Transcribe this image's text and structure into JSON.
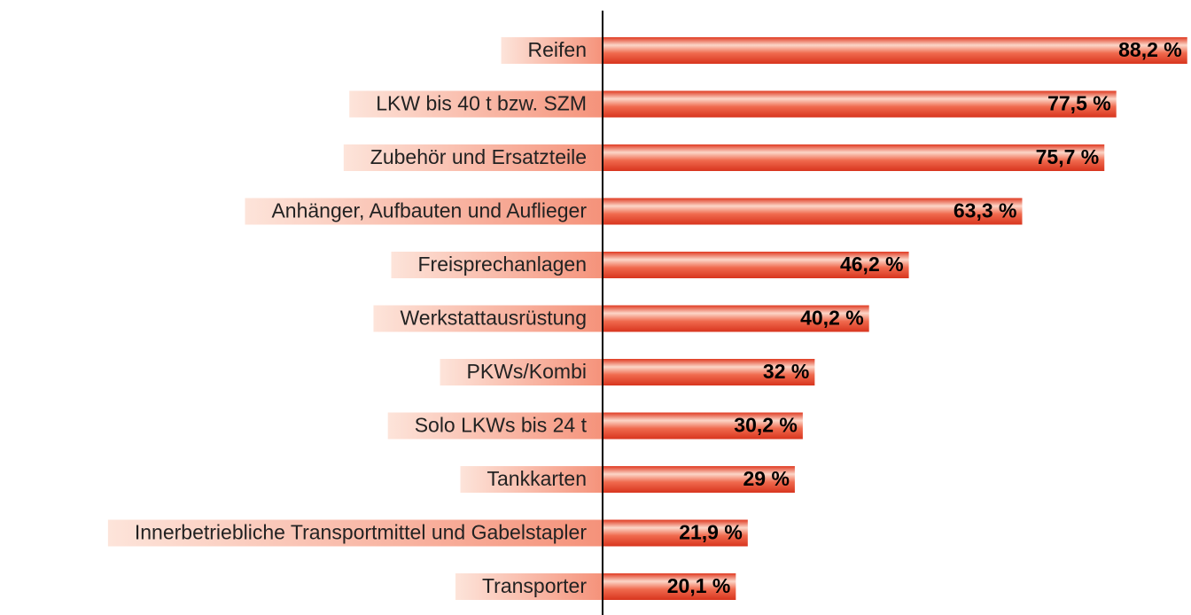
{
  "chart_data": {
    "type": "bar",
    "orientation": "horizontal",
    "categories": [
      "Reifen",
      "LKW bis 40 t bzw. SZM",
      "Zubehör und Ersatzteile",
      "Anhänger, Aufbauten und Auflieger",
      "Freisprechanlagen",
      "Werkstattausrüstung",
      "PKWs/Kombi",
      "Solo LKWs bis 24 t",
      "Tankkarten",
      "Innerbetriebliche Transportmittel und Gabelstapler",
      "Transporter"
    ],
    "values": [
      88.2,
      77.5,
      75.7,
      63.3,
      46.2,
      40.2,
      32,
      30.2,
      29,
      21.9,
      20.1
    ],
    "value_labels": [
      "88,2 %",
      "77,5 %",
      "75,7 %",
      "63,3 %",
      "46,2 %",
      "40,2 %",
      "32 %",
      "30,2 %",
      "29 %",
      "21,9 %",
      "20,1 %"
    ],
    "color": "#e8402a",
    "xlim": [
      0,
      88.5
    ]
  }
}
